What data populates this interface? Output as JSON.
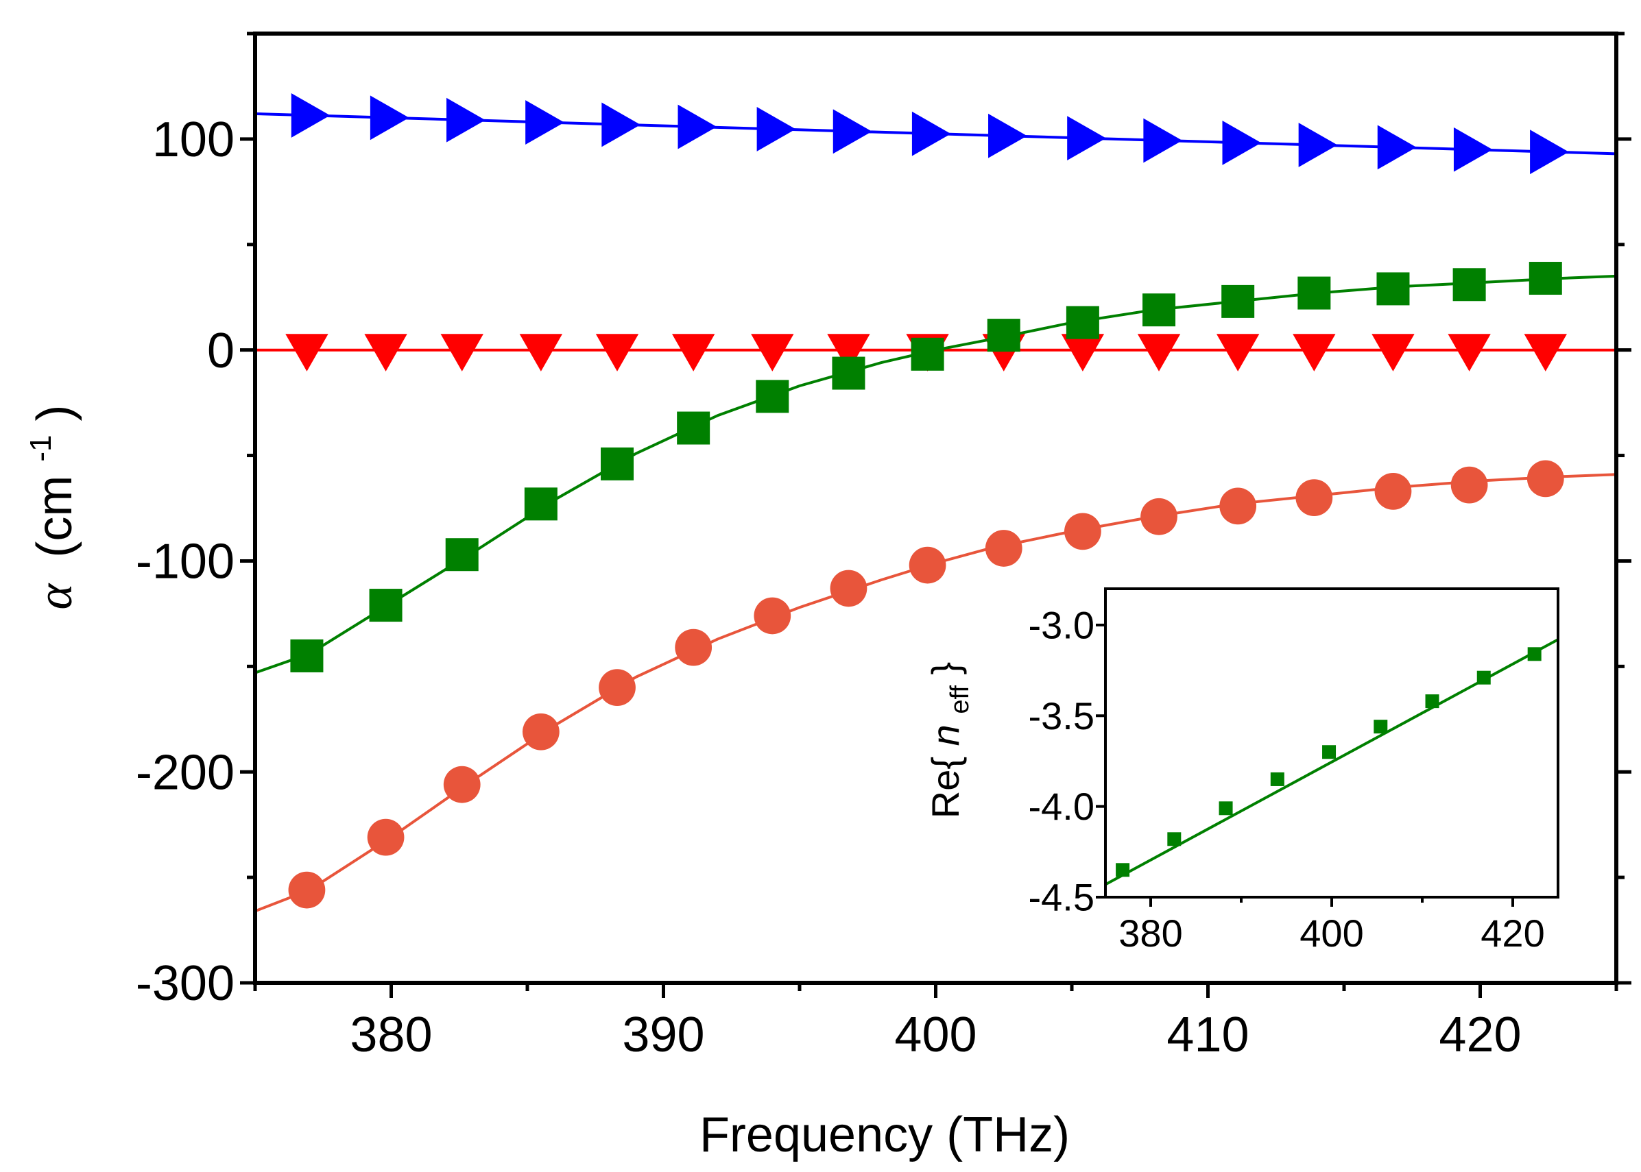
{
  "chart_data": [
    {
      "type": "line",
      "title": "",
      "xlabel": "Frequency (THz)",
      "ylabel_symbol": "α",
      "ylabel_unit_open": "(cm",
      "ylabel_unit_exp": "-1",
      "ylabel_unit_close": ")",
      "xlim": [
        375,
        425
      ],
      "ylim": [
        -300,
        150
      ],
      "x_ticks": [
        380,
        390,
        400,
        410,
        420
      ],
      "x_tick_labels": [
        "380",
        "390",
        "400",
        "410",
        "420"
      ],
      "y_ticks": [
        -300,
        -200,
        -100,
        0,
        100
      ],
      "y_tick_labels": [
        "-300",
        "-200",
        "-100",
        "0",
        "100"
      ],
      "grid": false,
      "legend": "none",
      "marker_x": [
        376.9,
        379.8,
        382.6,
        385.5,
        388.3,
        391.1,
        394.0,
        396.8,
        399.7,
        402.5,
        405.4,
        408.2,
        411.1,
        413.9,
        416.8,
        419.6,
        422.4
      ],
      "series": [
        {
          "name": "blue",
          "color": "#0000ff",
          "marker": "triangle-right",
          "line_x": [
            375,
            425
          ],
          "line_y": [
            112,
            93
          ],
          "values": [
            111.2,
            110.1,
            109.0,
            107.9,
            106.8,
            105.8,
            104.7,
            103.6,
            102.5,
            101.5,
            100.4,
            99.3,
            98.2,
            97.2,
            96.1,
            95.0,
            93.9
          ]
        },
        {
          "name": "red",
          "color": "#ff0000",
          "marker": "triangle-down",
          "line_x": [
            375,
            425
          ],
          "line_y": [
            0,
            0
          ],
          "values": [
            0,
            0,
            0,
            0,
            0,
            0,
            0,
            0,
            0,
            0,
            0,
            0,
            0,
            0,
            0,
            0,
            0
          ]
        },
        {
          "name": "green",
          "color": "#008000",
          "marker": "square",
          "line_x": [
            375,
            377,
            380,
            383,
            386,
            389,
            392,
            395,
            398,
            400,
            402,
            405,
            408,
            411,
            414,
            417,
            420,
            423,
            425
          ],
          "line_y": [
            -153,
            -144,
            -120,
            -96,
            -71,
            -49,
            -31,
            -17,
            -6,
            0,
            5,
            13,
            19,
            23,
            27,
            30,
            32,
            34,
            35
          ],
          "values": [
            -145,
            -121,
            -97,
            -73,
            -54,
            -37,
            -22,
            -11,
            -2,
            7,
            13,
            19,
            23,
            27,
            29,
            31,
            34
          ]
        },
        {
          "name": "orange",
          "color": "#e8553b",
          "marker": "circle",
          "line_x": [
            375,
            377,
            380,
            383,
            386,
            389,
            392,
            395,
            398,
            400,
            402,
            405,
            408,
            411,
            414,
            417,
            420,
            423,
            425
          ],
          "line_y": [
            -266,
            -256,
            -231,
            -204,
            -178,
            -155,
            -137,
            -122,
            -109,
            -101,
            -94,
            -86,
            -79,
            -73,
            -69,
            -65,
            -62,
            -60,
            -59
          ],
          "values": [
            -256,
            -231,
            -206,
            -181,
            -160,
            -141,
            -126,
            -113,
            -102,
            -94,
            -86,
            -79,
            -74,
            -70,
            -67,
            -64,
            -61
          ]
        }
      ]
    },
    {
      "type": "line",
      "title": "inset",
      "xlabel": "",
      "ylabel_prefix": "Re{",
      "ylabel_italic": "n",
      "ylabel_sub": "eff",
      "ylabel_suffix": "}",
      "xlim": [
        375,
        425
      ],
      "ylim": [
        -4.5,
        -2.8
      ],
      "x_ticks": [
        380,
        400,
        420
      ],
      "x_tick_labels": [
        "380",
        "400",
        "420"
      ],
      "y_ticks": [
        -4.5,
        -4.0,
        -3.5,
        -3.0
      ],
      "y_tick_labels": [
        "-4.5",
        "-4.0",
        "-3.5",
        "-3.0"
      ],
      "grid": false,
      "legend": "none",
      "series": [
        {
          "name": "Re{n_eff}",
          "color": "#008000",
          "marker": "square",
          "line_x": [
            375,
            425
          ],
          "line_y": [
            -4.43,
            -3.08
          ],
          "x": [
            376.9,
            382.6,
            388.3,
            394.0,
            399.7,
            405.4,
            411.1,
            416.8,
            422.4
          ],
          "values": [
            -4.35,
            -4.18,
            -4.01,
            -3.85,
            -3.7,
            -3.56,
            -3.42,
            -3.29,
            -3.16
          ]
        }
      ]
    }
  ]
}
